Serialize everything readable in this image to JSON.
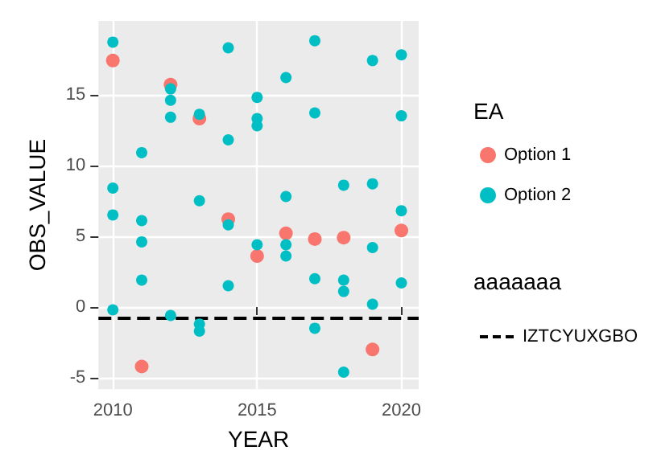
{
  "chart_data": {
    "type": "scatter",
    "xlabel": "YEAR",
    "ylabel": "OBS_VALUE",
    "legend_title": "EA",
    "legend": "right",
    "grid": true,
    "marker": "circle",
    "xlim": [
      2009.5,
      2020.6
    ],
    "xticks": [
      2010,
      2015,
      2020
    ],
    "ylim": [
      -5.8,
      20.2
    ],
    "yticks": [
      -5,
      0,
      5,
      10,
      15
    ],
    "series": [
      {
        "name": "Option 1",
        "color": "#f8766d",
        "x": [
          2010,
          2011,
          2012,
          2013,
          2014,
          2015,
          2016,
          2017,
          2018,
          2019,
          2020
        ],
        "values": [
          17.4,
          -4.2,
          15.7,
          13.3,
          6.2,
          3.6,
          5.2,
          4.8,
          4.9,
          -3.0,
          5.4
        ]
      },
      {
        "name": "Option 2",
        "color": "#00bfc4",
        "x": [
          2010,
          2010,
          2010,
          2010,
          2011,
          2011,
          2011,
          2011,
          2012,
          2012,
          2012,
          2012,
          2013,
          2013,
          2013,
          2013,
          2014,
          2014,
          2014,
          2014,
          2015,
          2015,
          2015,
          2015,
          2016,
          2016,
          2016,
          2016,
          2017,
          2017,
          2017,
          2017,
          2018,
          2018,
          2018,
          2018,
          2019,
          2019,
          2019,
          2019,
          2020,
          2020,
          2020,
          2020
        ],
        "values": [
          18.7,
          8.4,
          6.5,
          -0.2,
          10.9,
          6.1,
          4.6,
          1.9,
          15.4,
          14.6,
          13.4,
          -0.6,
          13.6,
          7.5,
          -1.2,
          -1.7,
          18.3,
          11.8,
          5.8,
          1.5,
          14.8,
          13.3,
          12.8,
          4.4,
          16.2,
          7.8,
          4.4,
          3.6,
          18.8,
          13.7,
          2.0,
          -1.5,
          8.6,
          1.9,
          1.1,
          -4.6,
          17.4,
          8.7,
          4.2,
          0.2,
          17.8,
          13.5,
          6.8,
          1.7
        ]
      }
    ],
    "ref_lines": [
      {
        "axis": "y",
        "value": -0.8,
        "label": "IZTCYUXGBO",
        "color": "#000000",
        "line_style": "dashed"
      }
    ],
    "annotations": [
      "aaaaaaa"
    ]
  }
}
